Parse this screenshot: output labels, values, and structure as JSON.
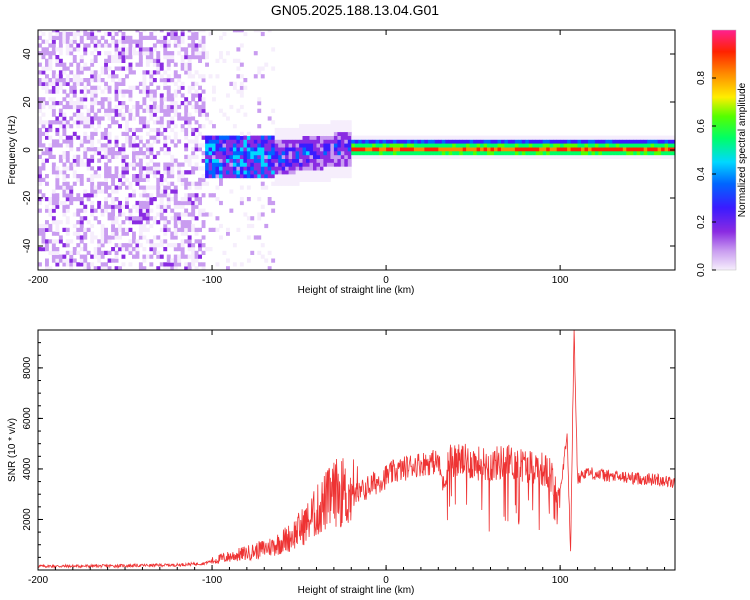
{
  "title": "GN05.2025.188.13.04.G01",
  "colors": {
    "snr_line": "#ee3333",
    "colormap": [
      "#f6eefc",
      "#d8b8f4",
      "#8a2be2",
      "#2020ff",
      "#00d8ff",
      "#00ff40",
      "#ffee00",
      "#ff3300",
      "#ff2090"
    ]
  },
  "chart_data": [
    {
      "type": "heatmap",
      "xlabel": "Height of straight line (km)",
      "ylabel": "Frequency (Hz)",
      "xlim": [
        -200,
        166
      ],
      "ylim": [
        -50,
        50
      ],
      "x_ticks": [
        -200,
        -100,
        0,
        100
      ],
      "y_ticks": [
        -40,
        -20,
        0,
        20,
        40
      ],
      "colorbar": {
        "label": "Normalized spectral amplitude",
        "range": [
          0.0,
          1.0
        ],
        "ticks": [
          "0.0",
          "0.2",
          "0.4",
          "0.6",
          "0.8"
        ],
        "tick_values": [
          0.0,
          0.2,
          0.4,
          0.6,
          0.8
        ]
      },
      "regions": [
        {
          "x": [
            -200,
            -105
          ],
          "description": "broadband noise, low amplitude purple speckle across all frequencies"
        },
        {
          "x": [
            -105,
            -20
          ],
          "freq_center": -4,
          "freq_spread": 8,
          "amplitude": [
            0.3,
            0.55
          ]
        },
        {
          "x": [
            -20,
            166
          ],
          "freq_center": 0,
          "freq_spread": 2,
          "amplitude": [
            0.8,
            1.0
          ]
        }
      ]
    },
    {
      "type": "line",
      "xlabel": "Height of straight line (km)",
      "ylabel": "SNR (10 * v/v)",
      "xlim": [
        -200,
        166
      ],
      "ylim": [
        0,
        9500
      ],
      "x_ticks": [
        -200,
        -100,
        0,
        100
      ],
      "y_ticks": [
        2000,
        4000,
        6000,
        8000
      ],
      "series": [
        {
          "x": [
            -200,
            -180,
            -160,
            -140,
            -120,
            -105,
            -95,
            -85,
            -75,
            -65,
            -55,
            -45,
            -35,
            -28,
            -22,
            -16,
            -10,
            -5,
            0,
            5,
            10,
            15,
            20,
            25,
            30,
            33,
            36,
            40,
            45,
            50,
            55,
            60,
            65,
            70,
            75,
            80,
            85,
            90,
            95,
            99,
            102,
            104,
            106,
            108,
            110,
            115,
            120,
            130,
            140,
            150,
            160,
            166
          ],
          "y": [
            150,
            150,
            160,
            180,
            200,
            260,
            450,
            600,
            750,
            950,
            1300,
            1900,
            2700,
            3100,
            2900,
            3000,
            3300,
            3500,
            3700,
            3900,
            4000,
            4150,
            4200,
            4250,
            4300,
            3300,
            4400,
            4350,
            4300,
            4250,
            4200,
            4150,
            4250,
            4300,
            4200,
            4150,
            4100,
            4000,
            3700,
            2800,
            4100,
            5500,
            600,
            9500,
            3600,
            3900,
            3800,
            3700,
            3650,
            3600,
            3550,
            3400
          ]
        }
      ]
    }
  ]
}
